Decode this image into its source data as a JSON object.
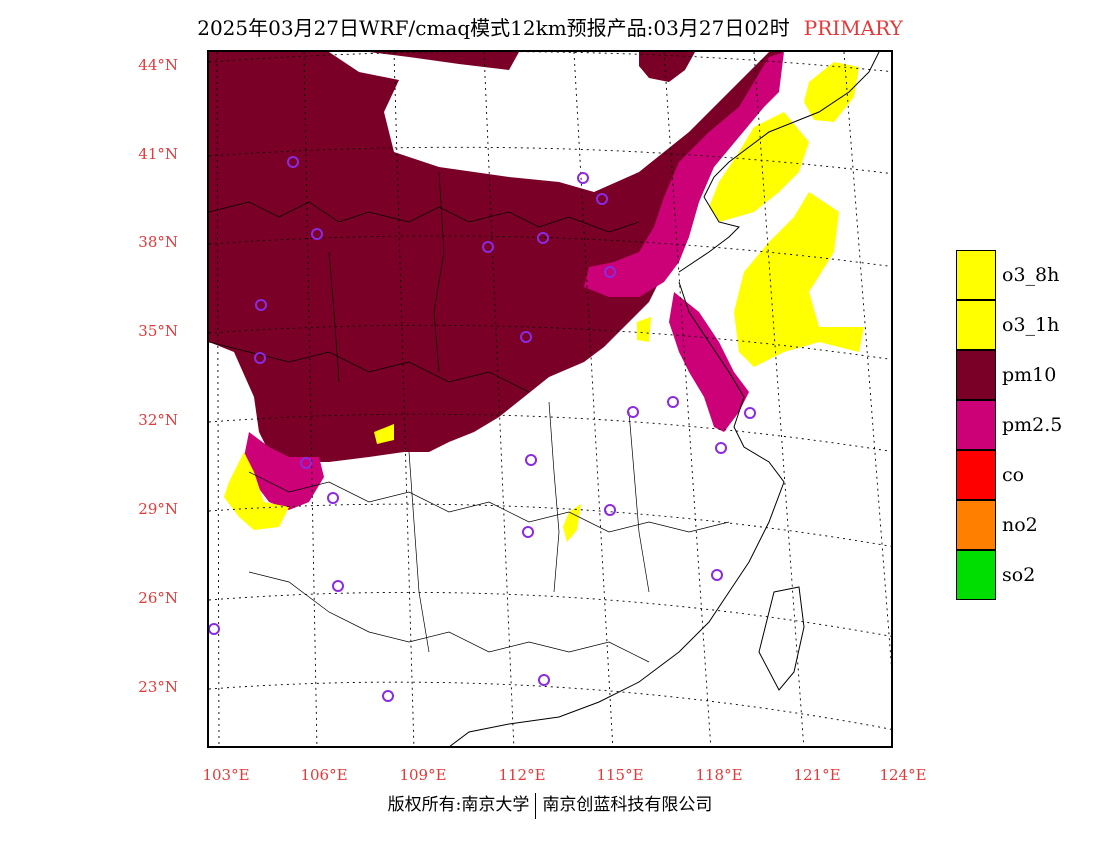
{
  "title": {
    "main": "2025年03月27日WRF/cmaq模式12km预报产品:03月27日02时",
    "badge": "PRIMARY"
  },
  "axes": {
    "lat_labels": [
      "44°N",
      "41°N",
      "38°N",
      "35°N",
      "32°N",
      "29°N",
      "26°N",
      "23°N"
    ],
    "lon_labels": [
      "103°E",
      "106°E",
      "109°E",
      "112°E",
      "115°E",
      "118°E",
      "121°E",
      "124°E"
    ]
  },
  "legend": {
    "items": [
      {
        "label": "o3_8h",
        "color": "#ffff00"
      },
      {
        "label": "o3_1h",
        "color": "#ffff00"
      },
      {
        "label": "pm10",
        "color": "#7a0028"
      },
      {
        "label": "pm2.5",
        "color": "#cc0077"
      },
      {
        "label": "co",
        "color": "#ff0000"
      },
      {
        "label": "no2",
        "color": "#ff7f00"
      },
      {
        "label": "so2",
        "color": "#00dd00"
      }
    ]
  },
  "colors": {
    "pm10": "#7a0028",
    "pm25": "#cc0077",
    "o3": "#ffff00",
    "station": "#8a2be2",
    "label": "#e23a3a"
  },
  "footer": {
    "left": "版权所有:南京大学",
    "right": "南京创蓝科技有限公司"
  }
}
